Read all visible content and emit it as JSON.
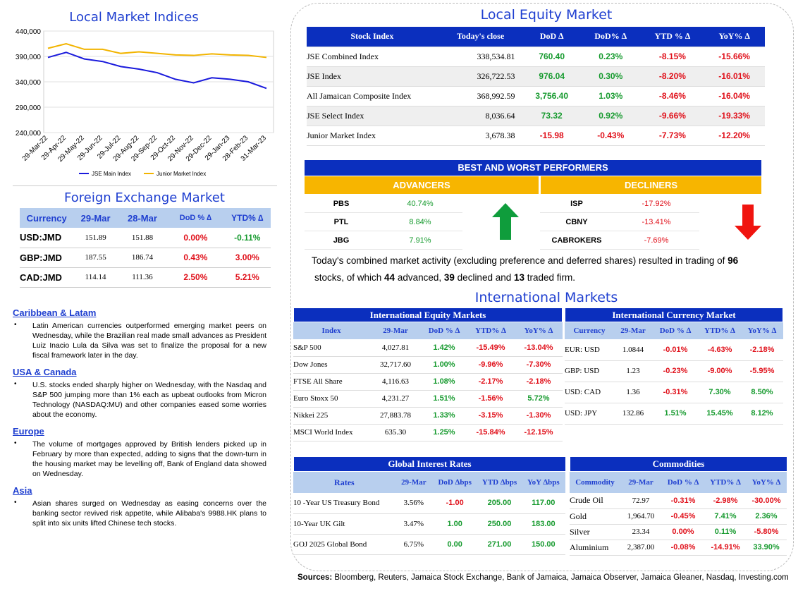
{
  "indices": {
    "title": "Local Market Indices",
    "y_ticks": [
      "440,000",
      "390,000",
      "340,000",
      "290,000",
      "240,000"
    ],
    "x_ticks": [
      "29-Mar-22",
      "29-Apr-22",
      "29-May-22",
      "29-Jun-22",
      "29-Jul-22",
      "29-Aug-22",
      "29-Sep-22",
      "29-Oct-22",
      "29-Nov-22",
      "29-Dec-22",
      "29-Jan-23",
      "28-Feb-23",
      "31-Mar-23"
    ],
    "legend": [
      "JSE Main Index",
      "Junior Market Index"
    ],
    "colors": {
      "main": "#1a1adc",
      "junior": "#f2b400"
    }
  },
  "chart_data": {
    "type": "line",
    "title": "Local Market Indices",
    "xlabel": "",
    "ylabel": "",
    "ylim": [
      240000,
      440000
    ],
    "categories": [
      "29-Mar-22",
      "29-Apr-22",
      "29-May-22",
      "29-Jun-22",
      "29-Jul-22",
      "29-Aug-22",
      "29-Sep-22",
      "29-Oct-22",
      "29-Nov-22",
      "29-Dec-22",
      "29-Jan-23",
      "28-Feb-23",
      "31-Mar-23"
    ],
    "series": [
      {
        "name": "JSE Main Index",
        "values": [
          388000,
          398000,
          385000,
          380000,
          370000,
          365000,
          358000,
          345000,
          338000,
          348000,
          345000,
          340000,
          327000
        ]
      },
      {
        "name": "Junior Market Index",
        "values": [
          406000,
          415000,
          404000,
          404000,
          396000,
          399000,
          396000,
          393000,
          392000,
          395000,
          393000,
          392000,
          388000
        ]
      }
    ]
  },
  "fx": {
    "title": "Foreign Exchange Market",
    "headers": [
      "Currency",
      "29-Mar",
      "28-Mar",
      "DoD % ∆",
      "YTD% ∆"
    ],
    "rows": [
      {
        "c": "USD:JMD",
        "a": "151.89",
        "b": "151.88",
        "d": "0.00%",
        "y": "-0.11%",
        "dc": "neg",
        "yc": "pos"
      },
      {
        "c": "GBP:JMD",
        "a": "187.55",
        "b": "186.74",
        "d": "0.43%",
        "y": "3.00%",
        "dc": "neg",
        "yc": "neg"
      },
      {
        "c": "CAD:JMD",
        "a": "114.14",
        "b": "111.36",
        "d": "2.50%",
        "y": "5.21%",
        "dc": "neg",
        "yc": "neg"
      }
    ]
  },
  "news": [
    {
      "h": "Caribbean & Latam",
      "t": "Latin American currencies outperformed emerging market peers on Wednesday, while the Brazilian real made small advances as President Luiz Inacio Lula da Silva was set to finalize the proposal for a new fiscal framework later in the day."
    },
    {
      "h": "USA & Canada",
      "t": "U.S. stocks ended sharply higher on Wednesday, with the Nasdaq and S&P 500 jumping more than 1% each as upbeat outlooks from Micron Technology (NASDAQ:MU) and other companies eased some worries about the economy."
    },
    {
      "h": "Europe",
      "t": "The volume of mortgages approved by British lenders picked up in February by more than expected, adding to signs that the down-turn in the housing market may be levelling off, Bank of England data showed on Wednesday."
    },
    {
      "h": "Asia",
      "t": "Asian shares surged on Wednesday as easing concerns over the banking sector revived risk appetite, while Alibaba's 9988.HK plans to split into six units lifted Chinese tech stocks."
    }
  ],
  "equity": {
    "title": "Local Equity Market",
    "headers": [
      "Stock Index",
      "Today's close",
      "DoD  ∆",
      "DoD% ∆",
      "YTD % ∆",
      "YoY% ∆"
    ],
    "rows": [
      [
        "JSE Combined Index",
        "338,534.81",
        "760.40",
        "0.23%",
        "-8.15%",
        "-15.66%",
        "pos",
        "pos",
        "neg",
        "neg"
      ],
      [
        "JSE Index",
        "326,722.53",
        "976.04",
        "0.30%",
        "-8.20%",
        "-16.01%",
        "pos",
        "pos",
        "neg",
        "neg"
      ],
      [
        "All Jamaican Composite Index",
        "368,992.59",
        "3,756.40",
        "1.03%",
        "-8.46%",
        "-16.04%",
        "pos",
        "pos",
        "neg",
        "neg"
      ],
      [
        "JSE Select Index",
        "8,036.64",
        "73.32",
        "0.92%",
        "-9.66%",
        "-19.33%",
        "pos",
        "pos",
        "neg",
        "neg"
      ],
      [
        "Junior Market Index",
        "3,678.38",
        "-15.98",
        "-0.43%",
        "-7.73%",
        "-12.20%",
        "neg",
        "neg",
        "neg",
        "neg"
      ]
    ]
  },
  "performers": {
    "title": "BEST AND WORST PERFORMERS",
    "adv": "ADVANCERS",
    "dec": "DECLINERS",
    "advancers": [
      [
        "PBS",
        "40.74%"
      ],
      [
        "PTL",
        "8.84%"
      ],
      [
        "JBG",
        "7.91%"
      ]
    ],
    "decliners": [
      [
        "ISP",
        "-17.92%"
      ],
      [
        "CBNY",
        "-13.41%"
      ],
      [
        "CABROKERS",
        "-7.69%"
      ]
    ]
  },
  "summary": {
    "p1": "Today's combined market activity (excluding preference and deferred shares) resulted in trading of ",
    "n1": "96",
    "p2": "stocks, of which ",
    "n2": "44",
    "p3": " advanced, ",
    "n3": "39",
    "p4": " declined and ",
    "n4": "13",
    "p5": " traded firm."
  },
  "intl": {
    "title": "International Markets",
    "eq_title": "International Equity Markets",
    "eq_headers": [
      "Index",
      "29-Mar",
      "DoD % ∆",
      "YTD% ∆",
      "YoY% ∆"
    ],
    "eq_rows": [
      [
        "S&P 500",
        "4,027.81",
        "1.42%",
        "-15.49%",
        "-13.04%",
        "pos",
        "neg",
        "neg"
      ],
      [
        "Dow Jones",
        "32,717.60",
        "1.00%",
        "-9.96%",
        "-7.30%",
        "pos",
        "neg",
        "neg"
      ],
      [
        "FTSE All Share",
        "4,116.63",
        "1.08%",
        "-2.17%",
        "-2.18%",
        "pos",
        "neg",
        "neg"
      ],
      [
        "Euro Stoxx 50",
        "4,231.27",
        "1.51%",
        "-1.56%",
        "5.72%",
        "pos",
        "neg",
        "pos"
      ],
      [
        "Nikkei 225",
        "27,883.78",
        "1.33%",
        "-3.15%",
        "-1.30%",
        "pos",
        "neg",
        "neg"
      ],
      [
        "MSCI World Index",
        "635.30",
        "1.25%",
        "-15.84%",
        "-12.15%",
        "pos",
        "neg",
        "neg"
      ]
    ],
    "cur_title": "International Currency Market",
    "cur_headers": [
      "Currency",
      "29-Mar",
      "DoD % ∆",
      "YTD% ∆",
      "YoY% ∆"
    ],
    "cur_rows": [
      [
        "EUR: USD",
        "1.0844",
        "-0.01%",
        "-4.63%",
        "-2.18%",
        "neg",
        "neg",
        "neg"
      ],
      [
        "GBP: USD",
        "1.23",
        "-0.23%",
        "-9.00%",
        "-5.95%",
        "neg",
        "neg",
        "neg"
      ],
      [
        "USD: CAD",
        "1.36",
        "-0.31%",
        "7.30%",
        "8.50%",
        "neg",
        "pos",
        "pos"
      ],
      [
        "USD: JPY",
        "132.86",
        "1.51%",
        "15.45%",
        "8.12%",
        "pos",
        "pos",
        "pos"
      ]
    ]
  },
  "rates": {
    "title": "Global Interest Rates",
    "headers": [
      "Rates",
      "29-Mar",
      "DoD ∆bps",
      "YTD ∆bps",
      "YoY ∆bps"
    ],
    "rows": [
      [
        "10 -Year US Treasury Bond",
        "3.56%",
        "-1.00",
        "205.00",
        "117.00",
        "neg",
        "pos",
        "pos"
      ],
      [
        "10-Year UK Gilt",
        "3.47%",
        "1.00",
        "250.00",
        "183.00",
        "pos",
        "pos",
        "pos"
      ],
      [
        "GOJ 2025 Global Bond",
        "6.75%",
        "0.00",
        "271.00",
        "150.00",
        "pos",
        "pos",
        "pos"
      ]
    ]
  },
  "commod": {
    "title": "Commodities",
    "headers": [
      "Commodity",
      "29-Mar",
      "DoD % ∆",
      "YTD% ∆",
      "YoY% ∆"
    ],
    "rows": [
      [
        "Crude Oil",
        "72.97",
        "-0.31%",
        "-2.98%",
        "-30.00%",
        "neg",
        "neg",
        "neg"
      ],
      [
        "Gold",
        "1,964.70",
        "-0.45%",
        "7.41%",
        "2.36%",
        "neg",
        "pos",
        "pos"
      ],
      [
        "Silver",
        "23.34",
        "0.00%",
        "0.11%",
        "-5.80%",
        "neg",
        "pos",
        "neg"
      ],
      [
        "Aluminium",
        "2,387.00",
        "-0.08%",
        "-14.91%",
        "33.90%",
        "neg",
        "neg",
        "pos"
      ]
    ]
  },
  "sources": {
    "label": "Sources:",
    "text": " Bloomberg, Reuters, Jamaica Stock Exchange, Bank of Jamaica, Jamaica Observer, Jamaica Gleaner, Nasdaq, Investing.com"
  }
}
